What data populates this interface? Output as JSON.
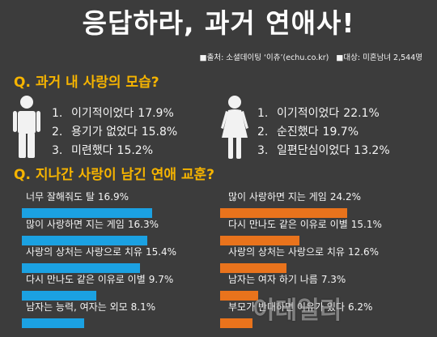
{
  "title": "응답하라, 과거 연애사!",
  "source": {
    "credit": "■출처: 소셜데이팅 ‘이츄’(echu.co.kr)",
    "sample": "■대상: 미혼남녀 2,544명"
  },
  "question1": {
    "title": "Q. 과거 내 사랑의 모습?",
    "male_icon": "man-icon",
    "female_icon": "woman-icon",
    "male": [
      {
        "rank": "1.",
        "label": "이기적이었다",
        "value": "17.9%"
      },
      {
        "rank": "2.",
        "label": "용기가 없었다",
        "value": "15.8%"
      },
      {
        "rank": "3.",
        "label": "미련했다",
        "value": "15.2%"
      }
    ],
    "female": [
      {
        "rank": "1.",
        "label": "이기적이었다",
        "value": "22.1%"
      },
      {
        "rank": "2.",
        "label": "순진했다",
        "value": "19.7%"
      },
      {
        "rank": "3.",
        "label": "일편단심이었다",
        "value": "13.2%"
      }
    ]
  },
  "chart_data": {
    "type": "bar",
    "orientation": "horizontal",
    "title": "Q. 지나간 사랑이 남긴 연애 교훈?",
    "unit": "%",
    "panels": [
      {
        "color": "#1ba1e2",
        "categories": [
          "너무 잘해줘도 탈",
          "많이 사랑하면 지는 게임",
          "사랑의 상처는 사랑으로 치유",
          "다시 만나도 같은 이유로 이별",
          "남자는 능력, 여자는 외모"
        ],
        "values": [
          16.9,
          16.3,
          15.4,
          9.7,
          8.1
        ]
      },
      {
        "color": "#e9731c",
        "categories": [
          "많이 사랑하면 지는 게임",
          "다시 만나도 같은 이유로 이별",
          "사랑의 상처는 사랑으로 치유",
          "남자는 여자 하기 나름",
          "부모가 반대하면 이유가 있다"
        ],
        "values": [
          24.2,
          15.1,
          12.6,
          7.3,
          6.2
        ]
      }
    ]
  },
  "colors": {
    "background": "#3c3c3c",
    "title": "#ffffff",
    "question": "#f6b400",
    "text": "#f4f4f4",
    "icon": "#f2f2f2"
  },
  "watermark": "이데일리"
}
